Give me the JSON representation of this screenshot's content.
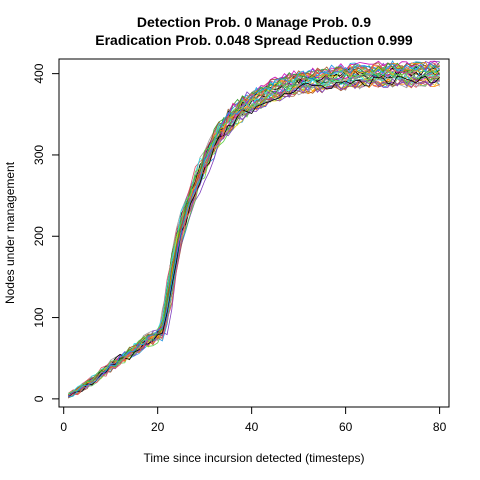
{
  "chart_data": {
    "type": "line",
    "title_line1": "Detection Prob. 0 Manage Prob. 0.9",
    "title_line2": "Eradication Prob. 0.048 Spread Reduction 0.999",
    "xlabel": "Time since incursion detected (timesteps)",
    "ylabel": "Nodes under management",
    "xlim": [
      -1,
      82
    ],
    "ylim": [
      -10,
      418
    ],
    "x_ticks": [
      0,
      20,
      40,
      60,
      80
    ],
    "y_ticks": [
      0,
      100,
      200,
      300,
      400
    ],
    "grid": false,
    "legend": "none",
    "num_series": 40,
    "x_range": [
      1,
      80
    ],
    "mean_curve_x": [
      1,
      3,
      5,
      8,
      10,
      12,
      15,
      18,
      20,
      21,
      22,
      23,
      24,
      25,
      26,
      28,
      30,
      32,
      34,
      36,
      38,
      40,
      42,
      45,
      48,
      50,
      55,
      60,
      65,
      70,
      75,
      80
    ],
    "mean_curve_y": [
      3,
      10,
      18,
      30,
      40,
      48,
      60,
      72,
      78,
      82,
      110,
      150,
      185,
      210,
      228,
      262,
      290,
      315,
      333,
      347,
      357,
      365,
      372,
      380,
      386,
      389,
      393,
      396,
      398,
      399,
      399,
      400
    ],
    "series_colors": [
      "#000000",
      "#DF536B",
      "#61D04F",
      "#2297E6",
      "#28E2E5",
      "#CD0BBC",
      "#F5C710",
      "#9E9E9E",
      "#FF7F00",
      "#A65628",
      "#7F3FBF",
      "#33A02C"
    ]
  }
}
